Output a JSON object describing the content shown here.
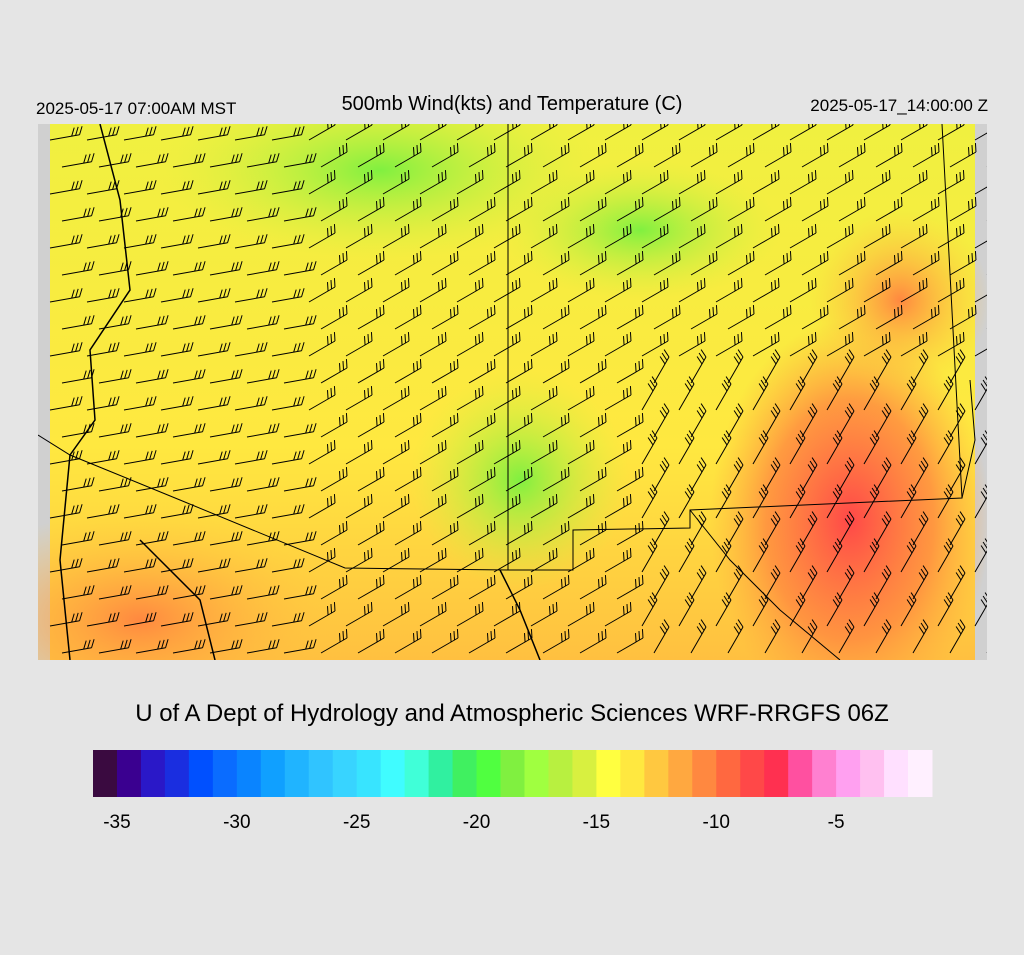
{
  "header": {
    "left": "2025-05-17 07:00AM MST",
    "title": "500mb Wind(kts) and Temperature (C)",
    "right": "2025-05-17_14:00:00 Z"
  },
  "credit": "U of A Dept of Hydrology and Atmospheric Sciences WRF-RRGFS 06Z",
  "colorbar": {
    "range": [
      -36,
      -1
    ],
    "ticks": [
      -35,
      -30,
      -25,
      -20,
      -15,
      -10,
      -5
    ],
    "colors": [
      "#3a0a40",
      "#3a0090",
      "#2a18c8",
      "#1a2ee0",
      "#0050ff",
      "#0a6cff",
      "#0a84ff",
      "#10a0ff",
      "#20b4ff",
      "#30c4ff",
      "#38d4ff",
      "#38e4ff",
      "#40fcff",
      "#40ffd8",
      "#30f0a0",
      "#40f060",
      "#50ff40",
      "#80f040",
      "#a0ff40",
      "#b8f040",
      "#d8f040",
      "#ffff40",
      "#ffe840",
      "#ffc840",
      "#ffa840",
      "#ff8840",
      "#ff6840",
      "#ff4848",
      "#ff3050",
      "#ff50a0",
      "#ff80d0",
      "#ffa0f0",
      "#ffc0f0",
      "#ffe0ff",
      "#fff0ff"
    ]
  }
}
